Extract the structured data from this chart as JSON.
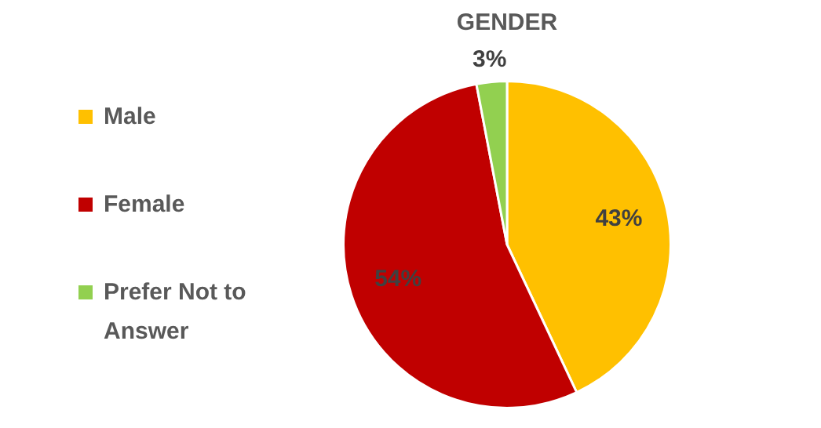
{
  "chart_data": {
    "type": "pie",
    "title": "GENDER",
    "categories": [
      "Male",
      "Female",
      "Prefer Not to Answer"
    ],
    "values": [
      43,
      54,
      3
    ],
    "colors": [
      "#ffc000",
      "#c00000",
      "#92d050"
    ],
    "value_labels": [
      "43%",
      "54%",
      "3%"
    ],
    "legend": "left"
  }
}
